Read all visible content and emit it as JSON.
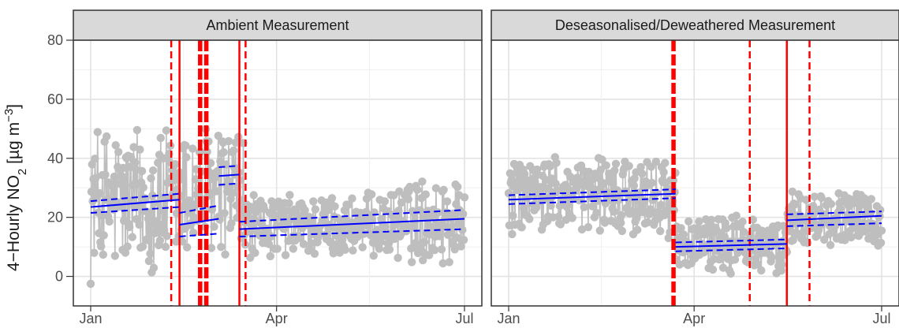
{
  "chart_data": {
    "type": "line",
    "ylabel": "4−Hourly NO",
    "ylabel_sub": "2",
    "ylabel_units": " [µg m",
    "ylabel_sup": "−3",
    "ylabel_close": "]",
    "ylim": [
      -10,
      80
    ],
    "y_ticks": [
      "0",
      "20",
      "40",
      "60",
      "80"
    ],
    "x_ticks": [
      "Jan",
      "Apr",
      "Jul"
    ],
    "grid": true,
    "colors": {
      "points": "#bebebe",
      "trend": "#0000ff",
      "breakpoint": "#ff0000"
    },
    "panels": [
      {
        "title": "Ambient Measurement",
        "segments": [
          {
            "x": [
              1,
              44
            ],
            "y": [
              23.5,
              26.0
            ],
            "ci_lower": [
              21.5,
              23.5
            ],
            "ci_upper": [
              25.5,
              28.0
            ]
          },
          {
            "x": [
              44,
              63
            ],
            "y": [
              17.5,
              19.5
            ],
            "ci_lower": [
              13.5,
              14.5
            ],
            "ci_upper": [
              21.5,
              24.0
            ]
          },
          {
            "x": [
              63,
              73
            ],
            "y": [
              34.0,
              34.5
            ],
            "ci_lower": [
              31.0,
              31.5
            ],
            "ci_upper": [
              37.0,
              37.5
            ]
          },
          {
            "x": [
              73,
              182
            ],
            "y": [
              16.0,
              19.5
            ],
            "ci_lower": [
              13.5,
              16.0
            ],
            "ci_upper": [
              18.5,
              22.5
            ]
          }
        ],
        "breakpoints": [
          {
            "x": 40,
            "style": "dashed"
          },
          {
            "x": 44,
            "style": "solid"
          },
          {
            "x": 54,
            "style": "thick-dashed"
          },
          {
            "x": 57,
            "style": "thick-dashed"
          },
          {
            "x": 73,
            "style": "solid"
          },
          {
            "x": 76,
            "style": "dashed"
          }
        ]
      },
      {
        "title": "Deseasonalised/Deweathered Measurement",
        "segments": [
          {
            "x": [
              1,
              82
            ],
            "y": [
              26.0,
              28.0
            ],
            "ci_lower": [
              24.5,
              26.5
            ],
            "ci_upper": [
              27.5,
              29.5
            ]
          },
          {
            "x": [
              82,
              136
            ],
            "y": [
              10.0,
              11.0
            ],
            "ci_lower": [
              8.5,
              9.5
            ],
            "ci_upper": [
              11.5,
              12.5
            ]
          },
          {
            "x": [
              136,
              182
            ],
            "y": [
              19.0,
              20.5
            ],
            "ci_lower": [
              17.0,
              18.0
            ],
            "ci_upper": [
              21.0,
              22.0
            ]
          }
        ],
        "breakpoints": [
          {
            "x": 81,
            "style": "thick-dashed"
          },
          {
            "x": 118,
            "style": "dashed"
          },
          {
            "x": 136,
            "style": "solid"
          },
          {
            "x": 147,
            "style": "dashed"
          }
        ]
      }
    ]
  }
}
